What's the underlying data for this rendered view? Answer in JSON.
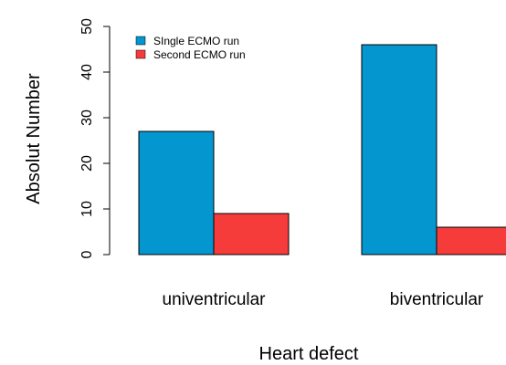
{
  "chart_data": {
    "type": "bar",
    "categories": [
      "univentricular",
      "biventricular"
    ],
    "series": [
      {
        "name": "SIngle ECMO run",
        "values": [
          27,
          46
        ],
        "color": "#0396CF"
      },
      {
        "name": "Second ECMO run",
        "values": [
          9,
          6
        ],
        "color": "#F63B3B"
      }
    ],
    "xlabel": "Heart defect",
    "ylabel": "Absolut Number",
    "ylim": [
      0,
      50
    ],
    "yticks": [
      0,
      10,
      20,
      30,
      40,
      50
    ],
    "grid": false,
    "legend_position": "top-left"
  }
}
